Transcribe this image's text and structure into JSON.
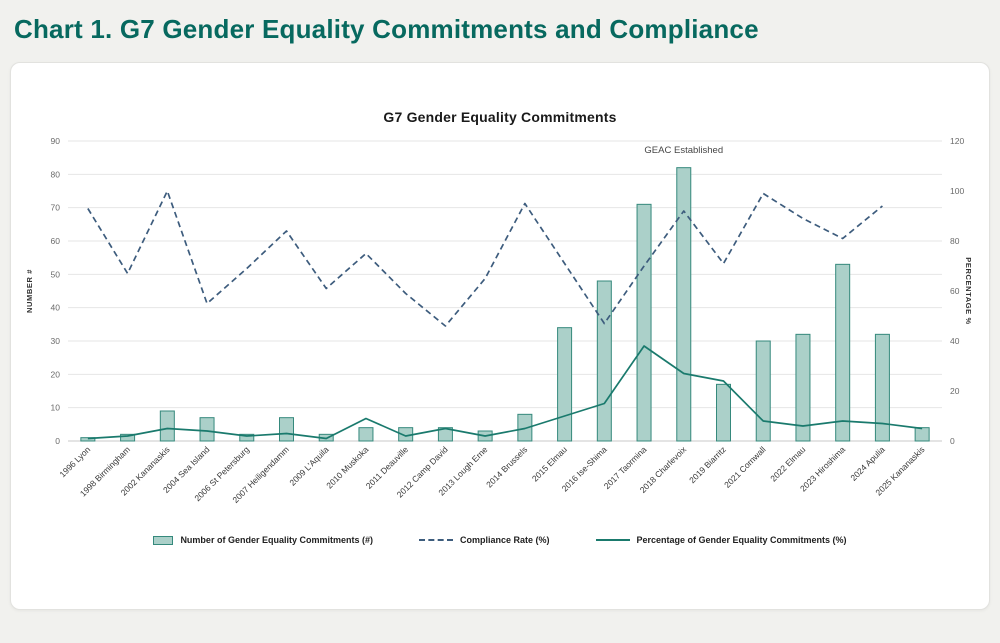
{
  "page": {
    "title": "Chart 1. G7 Gender Equality Commitments and Compliance",
    "title_color": "#07695f"
  },
  "chart_data": {
    "type": "combo (bar + line)",
    "title": "G7 Gender Equality Commitments",
    "grid": true,
    "legend_position": "bottom",
    "categories": [
      "1996 Lyon",
      "1998 Birmingham",
      "2002 Kananaskis",
      "2004 Sea Island",
      "2006 St Petersburg",
      "2007 Heiligendamm",
      "2009 L'Aquila",
      "2010 Muskoka",
      "2011 Deauville",
      "2012 Camp David",
      "2013 Lough Erne",
      "2014 Brussels",
      "2015 Elmau",
      "2016 Ise-Shima",
      "2017 Taormina",
      "2018 Charlevoix",
      "2019 Biarritz",
      "2021 Cornwall",
      "2022 Elmau",
      "2023 Hiroshima",
      "2024 Apulia",
      "2025 Kananaskis"
    ],
    "left_axis": {
      "label": "NUMBER #",
      "min": 0,
      "max": 90,
      "step": 10
    },
    "right_axis": {
      "label": "PERCENTAGE %",
      "min": 0,
      "max": 120,
      "step": 20
    },
    "series": [
      {
        "name": "Number of Gender Equality Commitments (#)",
        "type": "bar",
        "axis": "left",
        "color_fill": "#abd0c9",
        "color_stroke": "#35897c",
        "values": [
          1,
          2,
          9,
          7,
          2,
          7,
          2,
          4,
          4,
          4,
          3,
          8,
          34,
          48,
          71,
          82,
          17,
          30,
          32,
          53,
          32,
          4
        ]
      },
      {
        "name": "Compliance Rate (%)",
        "type": "line-dashed",
        "axis": "right",
        "color": "#3d5c7d",
        "values": [
          93,
          67,
          100,
          55,
          69,
          84,
          61,
          75,
          59,
          46,
          65,
          95,
          71,
          47,
          70,
          92,
          71,
          99,
          89,
          81,
          94,
          null
        ]
      },
      {
        "name": "Percentage of Gender Equality Commitments (%)",
        "type": "line",
        "axis": "right",
        "color": "#1a7a6d",
        "values": [
          1,
          2,
          5,
          4,
          2,
          3,
          1,
          9,
          2,
          5,
          2,
          5,
          10,
          15,
          38,
          27,
          24,
          8,
          6,
          8,
          7,
          5
        ]
      }
    ],
    "annotation": {
      "text": "GEAC Established",
      "category": "2018 Charlevoix"
    },
    "colors": {
      "grid": "#e6e6e6",
      "baseline": "#c8c8c8",
      "tick_label": "#6a6a6a",
      "category_label": "#3a3a3a",
      "axis_title": "#333333",
      "annotation": "#474747"
    }
  }
}
